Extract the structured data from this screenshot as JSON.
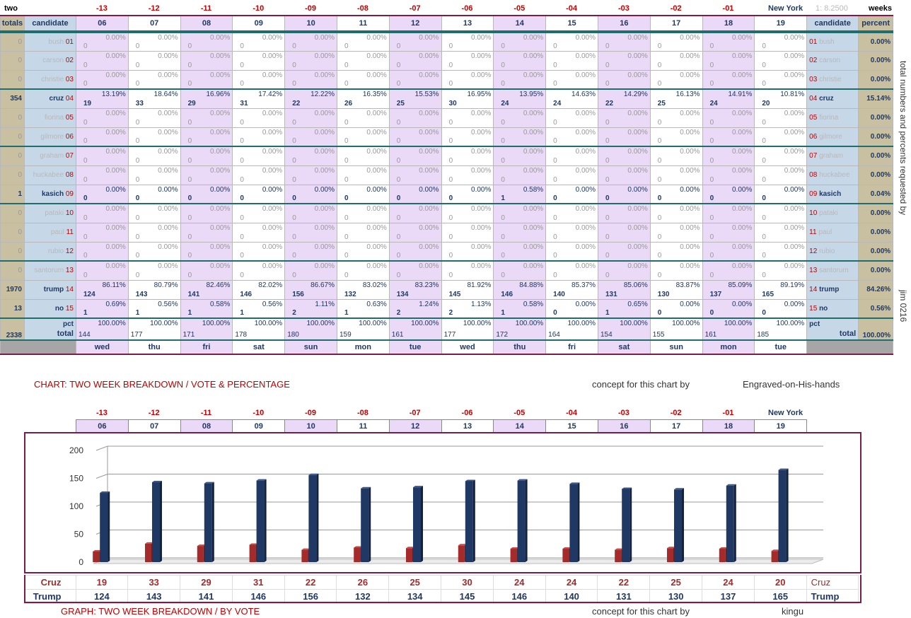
{
  "top": {
    "left_label": "two",
    "right_label": "weeks",
    "location": "New York",
    "ratio": "1:  8.2500",
    "day_offsets": [
      "-13",
      "-12",
      "-11",
      "-10",
      "-09",
      "-08",
      "-07",
      "-06",
      "-05",
      "-04",
      "-03",
      "-02",
      "-01"
    ]
  },
  "header": {
    "totals": "totals",
    "candidate": "candidate",
    "percent": "percent",
    "dates": [
      "06",
      "07",
      "08",
      "09",
      "10",
      "11",
      "12",
      "13",
      "14",
      "15",
      "16",
      "17",
      "18",
      "19"
    ]
  },
  "candidates": [
    {
      "num": "01",
      "name": "bush",
      "total": "0",
      "pct": "0.00%",
      "active": false,
      "votes": [
        "0",
        "0",
        "0",
        "0",
        "0",
        "0",
        "0",
        "0",
        "0",
        "0",
        "0",
        "0",
        "0",
        "0"
      ],
      "pcts": [
        "0.00%",
        "0.00%",
        "0.00%",
        "0.00%",
        "0.00%",
        "0.00%",
        "0.00%",
        "0.00%",
        "0.00%",
        "0.00%",
        "0.00%",
        "0.00%",
        "0.00%",
        "0.00%"
      ]
    },
    {
      "num": "02",
      "name": "carson",
      "total": "0",
      "pct": "0.00%",
      "active": false,
      "votes": [
        "0",
        "0",
        "0",
        "0",
        "0",
        "0",
        "0",
        "0",
        "0",
        "0",
        "0",
        "0",
        "0",
        "0"
      ],
      "pcts": [
        "0.00%",
        "0.00%",
        "0.00%",
        "0.00%",
        "0.00%",
        "0.00%",
        "0.00%",
        "0.00%",
        "0.00%",
        "0.00%",
        "0.00%",
        "0.00%",
        "0.00%",
        "0.00%"
      ]
    },
    {
      "num": "03",
      "name": "christie",
      "total": "0",
      "pct": "0.00%",
      "active": false,
      "votes": [
        "0",
        "0",
        "0",
        "0",
        "0",
        "0",
        "0",
        "0",
        "0",
        "0",
        "0",
        "0",
        "0",
        "0"
      ],
      "pcts": [
        "0.00%",
        "0.00%",
        "0.00%",
        "0.00%",
        "0.00%",
        "0.00%",
        "0.00%",
        "0.00%",
        "0.00%",
        "0.00%",
        "0.00%",
        "0.00%",
        "0.00%",
        "0.00%"
      ]
    },
    {
      "num": "04",
      "name": "cruz",
      "total": "354",
      "pct": "15.14%",
      "active": true,
      "votes": [
        "19",
        "33",
        "29",
        "31",
        "22",
        "26",
        "25",
        "30",
        "24",
        "24",
        "22",
        "25",
        "24",
        "20"
      ],
      "pcts": [
        "13.19%",
        "18.64%",
        "16.96%",
        "17.42%",
        "12.22%",
        "16.35%",
        "15.53%",
        "16.95%",
        "13.95%",
        "14.63%",
        "14.29%",
        "16.13%",
        "14.91%",
        "10.81%"
      ]
    },
    {
      "num": "05",
      "name": "fiorina",
      "total": "0",
      "pct": "0.00%",
      "active": false,
      "votes": [
        "0",
        "0",
        "0",
        "0",
        "0",
        "0",
        "0",
        "0",
        "0",
        "0",
        "0",
        "0",
        "0",
        "0"
      ],
      "pcts": [
        "0.00%",
        "0.00%",
        "0.00%",
        "0.00%",
        "0.00%",
        "0.00%",
        "0.00%",
        "0.00%",
        "0.00%",
        "0.00%",
        "0.00%",
        "0.00%",
        "0.00%",
        "0.00%"
      ]
    },
    {
      "num": "06",
      "name": "gilmore",
      "total": "0",
      "pct": "0.00%",
      "active": false,
      "votes": [
        "0",
        "0",
        "0",
        "0",
        "0",
        "0",
        "0",
        "0",
        "0",
        "0",
        "0",
        "0",
        "0",
        "0"
      ],
      "pcts": [
        "0.00%",
        "0.00%",
        "0.00%",
        "0.00%",
        "0.00%",
        "0.00%",
        "0.00%",
        "0.00%",
        "0.00%",
        "0.00%",
        "0.00%",
        "0.00%",
        "0.00%",
        "0.00%"
      ]
    },
    {
      "num": "07",
      "name": "graham",
      "total": "0",
      "pct": "0.00%",
      "active": false,
      "votes": [
        "0",
        "0",
        "0",
        "0",
        "0",
        "0",
        "0",
        "0",
        "0",
        "0",
        "0",
        "0",
        "0",
        "0"
      ],
      "pcts": [
        "0.00%",
        "0.00%",
        "0.00%",
        "0.00%",
        "0.00%",
        "0.00%",
        "0.00%",
        "0.00%",
        "0.00%",
        "0.00%",
        "0.00%",
        "0.00%",
        "0.00%",
        "0.00%"
      ]
    },
    {
      "num": "08",
      "name": "huckabee",
      "total": "0",
      "pct": "0.00%",
      "active": false,
      "votes": [
        "0",
        "0",
        "0",
        "0",
        "0",
        "0",
        "0",
        "0",
        "0",
        "0",
        "0",
        "0",
        "0",
        "0"
      ],
      "pcts": [
        "0.00%",
        "0.00%",
        "0.00%",
        "0.00%",
        "0.00%",
        "0.00%",
        "0.00%",
        "0.00%",
        "0.00%",
        "0.00%",
        "0.00%",
        "0.00%",
        "0.00%",
        "0.00%"
      ]
    },
    {
      "num": "09",
      "name": "kasich",
      "total": "1",
      "pct": "0.04%",
      "active": true,
      "votes": [
        "0",
        "0",
        "0",
        "0",
        "0",
        "0",
        "0",
        "0",
        "1",
        "0",
        "0",
        "0",
        "0",
        "0"
      ],
      "pcts": [
        "0.00%",
        "0.00%",
        "0.00%",
        "0.00%",
        "0.00%",
        "0.00%",
        "0.00%",
        "0.00%",
        "0.58%",
        "0.00%",
        "0.00%",
        "0.00%",
        "0.00%",
        "0.00%"
      ]
    },
    {
      "num": "10",
      "name": "pataki",
      "total": "0",
      "pct": "0.00%",
      "active": false,
      "votes": [
        "0",
        "0",
        "0",
        "0",
        "0",
        "0",
        "0",
        "0",
        "0",
        "0",
        "0",
        "0",
        "0",
        "0"
      ],
      "pcts": [
        "0.00%",
        "0.00%",
        "0.00%",
        "0.00%",
        "0.00%",
        "0.00%",
        "0.00%",
        "0.00%",
        "0.00%",
        "0.00%",
        "0.00%",
        "0.00%",
        "0.00%",
        "0.00%"
      ]
    },
    {
      "num": "11",
      "name": "paul",
      "total": "0",
      "pct": "0.00%",
      "active": false,
      "votes": [
        "0",
        "0",
        "0",
        "0",
        "0",
        "0",
        "0",
        "0",
        "0",
        "0",
        "0",
        "0",
        "0",
        "0"
      ],
      "pcts": [
        "0.00%",
        "0.00%",
        "0.00%",
        "0.00%",
        "0.00%",
        "0.00%",
        "0.00%",
        "0.00%",
        "0.00%",
        "0.00%",
        "0.00%",
        "0.00%",
        "0.00%",
        "0.00%"
      ]
    },
    {
      "num": "12",
      "name": "rubio",
      "total": "0",
      "pct": "0.00%",
      "active": false,
      "votes": [
        "0",
        "0",
        "0",
        "0",
        "0",
        "0",
        "0",
        "0",
        "0",
        "0",
        "0",
        "0",
        "0",
        "0"
      ],
      "pcts": [
        "0.00%",
        "0.00%",
        "0.00%",
        "0.00%",
        "0.00%",
        "0.00%",
        "0.00%",
        "0.00%",
        "0.00%",
        "0.00%",
        "0.00%",
        "0.00%",
        "0.00%",
        "0.00%"
      ]
    },
    {
      "num": "13",
      "name": "santorum",
      "total": "0",
      "pct": "0.00%",
      "active": false,
      "votes": [
        "0",
        "0",
        "0",
        "0",
        "0",
        "0",
        "0",
        "0",
        "0",
        "0",
        "0",
        "0",
        "0",
        "0"
      ],
      "pcts": [
        "0.00%",
        "0.00%",
        "0.00%",
        "0.00%",
        "0.00%",
        "0.00%",
        "0.00%",
        "0.00%",
        "0.00%",
        "0.00%",
        "0.00%",
        "0.00%",
        "0.00%",
        "0.00%"
      ]
    },
    {
      "num": "14",
      "name": "trump",
      "total": "1970",
      "pct": "84.26%",
      "active": true,
      "votes": [
        "124",
        "143",
        "141",
        "146",
        "156",
        "132",
        "134",
        "145",
        "146",
        "140",
        "131",
        "130",
        "137",
        "165"
      ],
      "pcts": [
        "86.11%",
        "80.79%",
        "82.46%",
        "82.02%",
        "86.67%",
        "83.02%",
        "83.23%",
        "81.92%",
        "84.88%",
        "85.37%",
        "85.06%",
        "83.87%",
        "85.09%",
        "89.19%"
      ]
    },
    {
      "num": "15",
      "name": "no",
      "total": "13",
      "pct": "0.56%",
      "active": true,
      "votes": [
        "1",
        "1",
        "1",
        "1",
        "2",
        "1",
        "2",
        "2",
        "1",
        "0",
        "1",
        "0",
        "0",
        "0"
      ],
      "pcts": [
        "0.69%",
        "0.56%",
        "0.58%",
        "0.56%",
        "1.11%",
        "0.63%",
        "1.24%",
        "1.13%",
        "0.58%",
        "0.00%",
        "0.65%",
        "0.00%",
        "0.00%",
        "0.00%"
      ]
    }
  ],
  "totals_row": {
    "grand_total": "2338",
    "pct_label": "pct",
    "label": "total",
    "votes": [
      "144",
      "177",
      "171",
      "178",
      "180",
      "159",
      "161",
      "177",
      "172",
      "164",
      "154",
      "155",
      "161",
      "185"
    ],
    "pcts": [
      "100.00%",
      "100.00%",
      "100.00%",
      "100.00%",
      "100.00%",
      "100.00%",
      "100.00%",
      "100.00%",
      "100.00%",
      "100.00%",
      "100.00%",
      "100.00%",
      "100.00%",
      "100.00%"
    ],
    "right_pct_label": "pct",
    "right_label": "total",
    "right_pct": "100.00%"
  },
  "days": [
    "wed",
    "thu",
    "fri",
    "sat",
    "sun",
    "mon",
    "tue",
    "wed",
    "thu",
    "fri",
    "sat",
    "sun",
    "mon",
    "tue"
  ],
  "side_text": "total numbers and percents requested by",
  "side_sig": "jim 0216",
  "chart_caption": "CHART: TWO WEEK BREAKDOWN / VOTE & PERCENTAGE",
  "concept_label": "concept for this chart by",
  "chart_credit": "Engraved-on-His-hands",
  "graph_caption": "GRAPH: TWO WEEK BREAKDOWN / BY VOTE",
  "graph_concept_label": "concept for this chart by",
  "graph_credit": "kingu",
  "colors": {
    "cruz": "#a52a2a",
    "trump": "#1f3864",
    "accent": "#c00000",
    "frame": "#7b1c4a"
  },
  "chart_data": {
    "type": "bar",
    "categories": [
      "06",
      "07",
      "08",
      "09",
      "10",
      "11",
      "12",
      "13",
      "14",
      "15",
      "16",
      "17",
      "18",
      "19"
    ],
    "series": [
      {
        "name": "Cruz",
        "values": [
          19,
          33,
          29,
          31,
          22,
          26,
          25,
          30,
          24,
          24,
          22,
          25,
          24,
          20
        ]
      },
      {
        "name": "Trump",
        "values": [
          124,
          143,
          141,
          146,
          156,
          132,
          134,
          145,
          146,
          140,
          131,
          130,
          137,
          165
        ]
      }
    ],
    "y_ticks": [
      "0",
      "50",
      "100",
      "150",
      "200"
    ],
    "ylim": [
      0,
      200
    ],
    "grid": true
  }
}
